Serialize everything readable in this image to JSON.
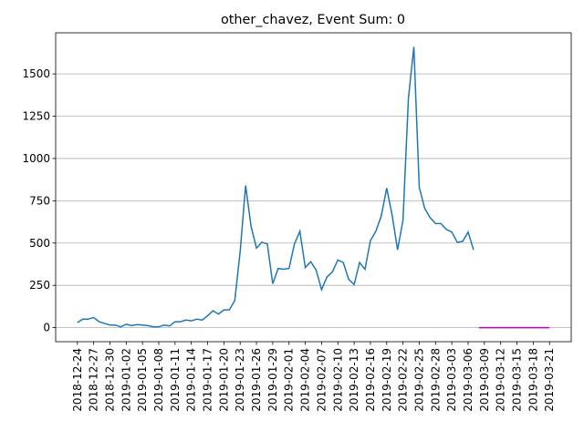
{
  "chart_data": {
    "type": "line",
    "title": "other_chavez, Event Sum: 0",
    "series": [
      {
        "color": "#1f77b4",
        "x": [
          "2018-12-24",
          "2018-12-25",
          "2018-12-26",
          "2018-12-27",
          "2018-12-28",
          "2018-12-29",
          "2018-12-30",
          "2018-12-31",
          "2019-01-01",
          "2019-01-02",
          "2019-01-03",
          "2019-01-04",
          "2019-01-05",
          "2019-01-06",
          "2019-01-07",
          "2019-01-08",
          "2019-01-09",
          "2019-01-10",
          "2019-01-11",
          "2019-01-12",
          "2019-01-13",
          "2019-01-14",
          "2019-01-15",
          "2019-01-16",
          "2019-01-17",
          "2019-01-18",
          "2019-01-19",
          "2019-01-20",
          "2019-01-21",
          "2019-01-22",
          "2019-01-23",
          "2019-01-24",
          "2019-01-25",
          "2019-01-26",
          "2019-01-27",
          "2019-01-28",
          "2019-01-29",
          "2019-01-30",
          "2019-01-31",
          "2019-02-01",
          "2019-02-02",
          "2019-02-03",
          "2019-02-04",
          "2019-02-05",
          "2019-02-06",
          "2019-02-07",
          "2019-02-08",
          "2019-02-09",
          "2019-02-10",
          "2019-02-11",
          "2019-02-12",
          "2019-02-13",
          "2019-02-14",
          "2019-02-15",
          "2019-02-16",
          "2019-02-17",
          "2019-02-18",
          "2019-02-19",
          "2019-02-20",
          "2019-02-21",
          "2019-02-22",
          "2019-02-23",
          "2019-02-24",
          "2019-02-25",
          "2019-02-26",
          "2019-02-27",
          "2019-02-28",
          "2019-03-01",
          "2019-03-02",
          "2019-03-03",
          "2019-03-04",
          "2019-03-05",
          "2019-03-06",
          "2019-03-07"
        ],
        "values": [
          30,
          50,
          50,
          60,
          35,
          25,
          15,
          15,
          5,
          20,
          12,
          18,
          15,
          12,
          5,
          5,
          15,
          10,
          35,
          35,
          45,
          40,
          50,
          45,
          70,
          100,
          80,
          105,
          105,
          160,
          450,
          840,
          600,
          470,
          505,
          495,
          260,
          350,
          345,
          350,
          495,
          570,
          355,
          390,
          340,
          225,
          300,
          330,
          400,
          385,
          285,
          255,
          385,
          345,
          515,
          570,
          660,
          825,
          665,
          460,
          635,
          1355,
          1660,
          830,
          705,
          650,
          615,
          615,
          580,
          565,
          505,
          510,
          565,
          460
        ]
      },
      {
        "color": "#bf00bf",
        "x": [
          "2019-03-08",
          "2019-03-09",
          "2019-03-10",
          "2019-03-11",
          "2019-03-12",
          "2019-03-13",
          "2019-03-14",
          "2019-03-15",
          "2019-03-16",
          "2019-03-17",
          "2019-03-18",
          "2019-03-19",
          "2019-03-20",
          "2019-03-21"
        ],
        "values": [
          0,
          0,
          0,
          0,
          0,
          0,
          0,
          0,
          0,
          0,
          0,
          0,
          0,
          0
        ]
      }
    ],
    "xlim": [
      "2018-12-20",
      "2019-03-25"
    ],
    "xticks": [
      "2018-12-24",
      "2018-12-27",
      "2018-12-30",
      "2019-01-02",
      "2019-01-05",
      "2019-01-08",
      "2019-01-11",
      "2019-01-14",
      "2019-01-17",
      "2019-01-20",
      "2019-01-23",
      "2019-01-26",
      "2019-01-29",
      "2019-02-01",
      "2019-02-04",
      "2019-02-07",
      "2019-02-10",
      "2019-02-13",
      "2019-02-16",
      "2019-02-19",
      "2019-02-22",
      "2019-02-25",
      "2019-02-28",
      "2019-03-03",
      "2019-03-06",
      "2019-03-09",
      "2019-03-12",
      "2019-03-15",
      "2019-03-18",
      "2019-03-21"
    ],
    "ylim": [
      -83,
      1743
    ],
    "yticks": [
      0,
      250,
      500,
      750,
      1000,
      1250,
      1500
    ],
    "grid": "y"
  }
}
